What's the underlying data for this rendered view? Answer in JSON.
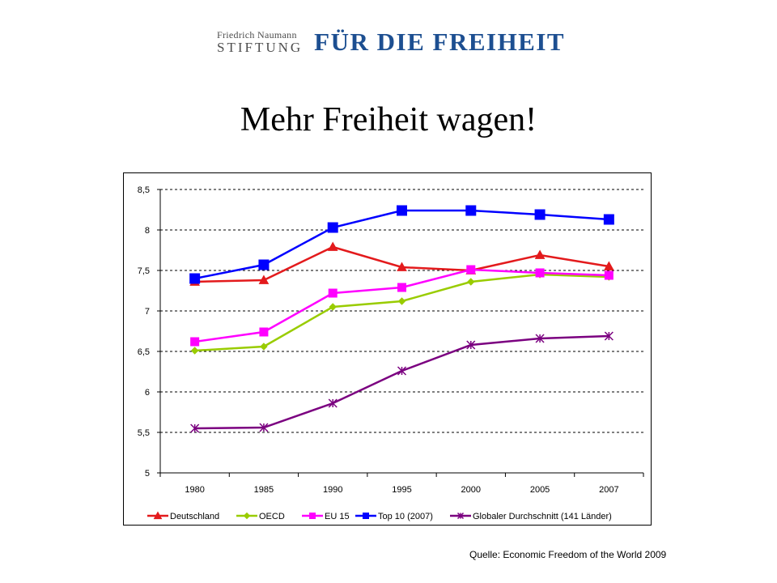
{
  "header": {
    "org_line1": "Friedrich Naumann",
    "org_line2": "STIFTUNG",
    "org_slogan": "FÜR DIE FREIHEIT"
  },
  "slide": {
    "title": "Mehr Freiheit wagen!",
    "source": "Quelle:  Economic Freedom of the World 2009"
  },
  "chart_data": {
    "type": "line",
    "title": "",
    "xlabel": "",
    "ylabel": "",
    "categories": [
      "1980",
      "1985",
      "1990",
      "1995",
      "2000",
      "2005",
      "2007"
    ],
    "ylim": [
      5,
      8.5
    ],
    "yticks": [
      5,
      5.5,
      6,
      6.5,
      7,
      7.5,
      8,
      8.5
    ],
    "ytick_labels": [
      "5",
      "5,5",
      "6",
      "6,5",
      "7",
      "7,5",
      "8",
      "8,5"
    ],
    "grid": true,
    "legend_position": "bottom",
    "series": [
      {
        "name": "Deutschland",
        "color": "#e31a1c",
        "marker": "triangle",
        "values": [
          7.36,
          7.38,
          7.79,
          7.54,
          7.5,
          7.69,
          7.55
        ]
      },
      {
        "name": "OECD",
        "color": "#99cc00",
        "marker": "diamond",
        "values": [
          6.51,
          6.56,
          7.05,
          7.12,
          7.36,
          7.45,
          7.42
        ]
      },
      {
        "name": "EU 15",
        "color": "#ff00ff",
        "marker": "square",
        "values": [
          6.62,
          6.74,
          7.22,
          7.29,
          7.51,
          7.47,
          7.44
        ]
      },
      {
        "name": "Top 10 (2007)",
        "color": "#0000ff",
        "marker": "square",
        "values": [
          7.4,
          7.57,
          8.03,
          8.24,
          8.24,
          8.19,
          8.13
        ]
      },
      {
        "name": "Globaler Durchschnitt (141 Länder)",
        "color": "#7b0080",
        "marker": "star",
        "values": [
          5.55,
          5.56,
          5.86,
          6.26,
          6.58,
          6.66,
          6.69
        ]
      }
    ]
  }
}
